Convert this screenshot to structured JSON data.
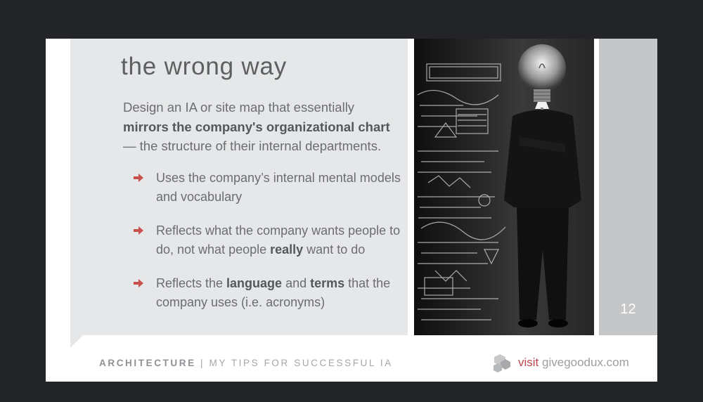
{
  "slide": {
    "title": "the wrong way",
    "intro": {
      "part1": "Design an IA or site map that essentially",
      "bold": "mirrors the company's organizational chart",
      "part2": " — the structure of their internal departments."
    },
    "bullets": [
      {
        "text1": "Uses the company’s internal mental models and vocabulary"
      },
      {
        "text1": "Reflects what the company wants people to do, not what people ",
        "bold1": "really",
        "text2": " want to do"
      },
      {
        "text1": "Reflects the ",
        "bold1": "language",
        "text2": " and ",
        "bold2": "terms",
        "text3": " that the company uses (i.e. acronyms)"
      }
    ],
    "page_number": "12",
    "footer": {
      "section": "ARCHITECTURE",
      "separator": " | ",
      "subtitle": "MY TIPS FOR SUCCESSFUL IA",
      "visit_word": "visit",
      "site": " givegoodux.com"
    },
    "image": {
      "description_icon": "lightbulb-head-businessman-photo"
    },
    "colors": {
      "accent": "#c9504c",
      "panel": "#e6e7e8",
      "text": "#6b6d70",
      "title": "#5d5f61",
      "background": "#222427"
    }
  }
}
